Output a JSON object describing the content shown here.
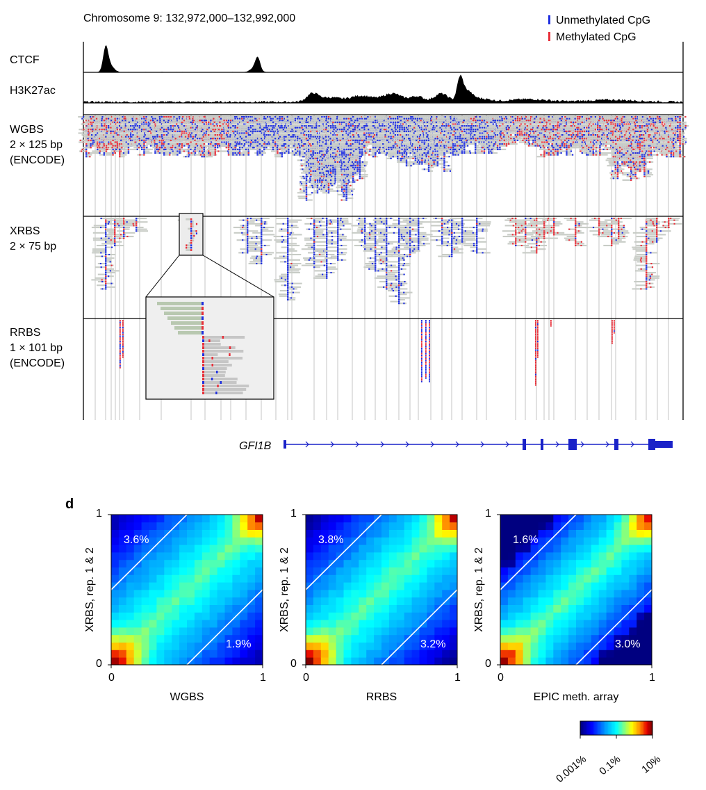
{
  "top": {
    "region": "Chromosome 9: 132,972,000–132,992,000",
    "legend": {
      "unmethylated": "Unmethylated CpG",
      "methylated": "Methylated CpG"
    },
    "tracks": {
      "ctcf": "CTCF",
      "h3k27ac": "H3K27ac",
      "wgbs": [
        "WGBS",
        "2 × 125 bp",
        "(ENCODE)"
      ],
      "xrbs": [
        "XRBS",
        "2 × 75 bp"
      ],
      "rrbs": [
        "RRBS",
        "1 × 101 bp",
        "(ENCODE)"
      ]
    },
    "gene": "GFI1B",
    "colors": {
      "unmethylated": "#1f2fe0",
      "methylated": "#e8303a",
      "read": "#c8ccc6",
      "gene": "#1a22c8"
    }
  },
  "panel_d": {
    "letter": "d",
    "colorbar_ticks": [
      "0.001%",
      "0.1%",
      "10%"
    ],
    "chart_data": [
      {
        "type": "heatmap",
        "xlabel": "WGBS",
        "ylabel": "XRBS, rep. 1 & 2",
        "xlim": [
          0,
          1
        ],
        "ylim": [
          0,
          1
        ],
        "x_ticks": [
          "0",
          "1"
        ],
        "y_ticks": [
          "0",
          "1"
        ],
        "annotations": {
          "upper_left": "3.6%",
          "lower_right": "1.9%"
        },
        "diagonal_offsets": [
          0.5,
          -0.5
        ]
      },
      {
        "type": "heatmap",
        "xlabel": "RRBS",
        "ylabel": "XRBS, rep. 1 & 2",
        "xlim": [
          0,
          1
        ],
        "ylim": [
          0,
          1
        ],
        "x_ticks": [
          "0",
          "1"
        ],
        "y_ticks": [
          "0",
          "1"
        ],
        "annotations": {
          "upper_left": "3.8%",
          "lower_right": "3.2%"
        },
        "diagonal_offsets": [
          0.5,
          -0.5
        ]
      },
      {
        "type": "heatmap",
        "xlabel": "EPIC meth. array",
        "ylabel": "XRBS, rep. 1 & 2",
        "xlim": [
          0,
          1
        ],
        "ylim": [
          0,
          1
        ],
        "x_ticks": [
          "0",
          "1"
        ],
        "y_ticks": [
          "0",
          "1"
        ],
        "annotations": {
          "upper_left": "1.6%",
          "lower_right": "3.0%"
        },
        "diagonal_offsets": [
          0.5,
          -0.5
        ]
      }
    ]
  }
}
